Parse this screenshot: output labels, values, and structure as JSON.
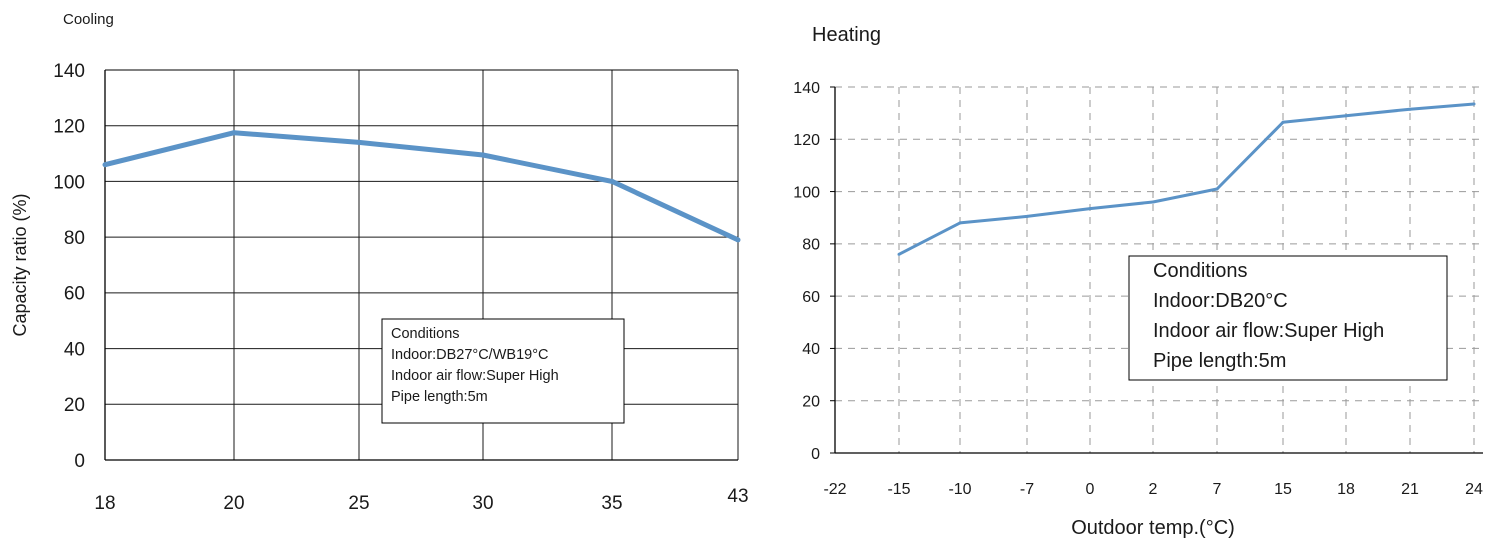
{
  "chart_data": [
    {
      "type": "line",
      "title": "Cooling",
      "xlabel": "",
      "ylabel": "Capacity ratio (%)",
      "categories": [
        "18",
        "20",
        "25",
        "30",
        "35",
        "43"
      ],
      "ylim": [
        0,
        140
      ],
      "yticks": [
        "0",
        "20",
        "40",
        "60",
        "80",
        "100",
        "120",
        "140"
      ],
      "grid": "solid, horizontal and vertical",
      "series": [
        {
          "values": [
            106,
            117.5,
            114,
            109.5,
            100,
            79
          ]
        }
      ],
      "annotation": {
        "placement": "bottom-right",
        "lines": [
          "Conditions",
          "Indoor:DB27°C/WB19°C",
          "Indoor air flow:Super High",
          "Pipe length:5m"
        ]
      }
    },
    {
      "type": "line",
      "title": "Heating",
      "xlabel": "Outdoor temp.(°C)",
      "ylabel": "",
      "categories": [
        "-22",
        "-15",
        "-10",
        "-7",
        "0",
        "2",
        "7",
        "15",
        "18",
        "21",
        "24"
      ],
      "ylim": [
        0,
        140
      ],
      "yticks": [
        "0",
        "20",
        "40",
        "60",
        "80",
        "100",
        "120",
        "140"
      ],
      "grid": "dashed, horizontal and vertical",
      "series": [
        {
          "values": [
            null,
            76,
            88,
            90.5,
            93.5,
            96,
            101,
            126.5,
            129,
            131.5,
            133.5
          ]
        }
      ],
      "annotation": {
        "placement": "right",
        "lines": [
          "Conditions",
          "Indoor:DB20°C",
          "Indoor air flow:Super High",
          "Pipe length:5m"
        ]
      }
    }
  ],
  "colors": {
    "line": "#5b93c7",
    "axis": "#000000",
    "cooling_grid": "#1a1a1a",
    "heating_grid": "#9a9a9a"
  }
}
